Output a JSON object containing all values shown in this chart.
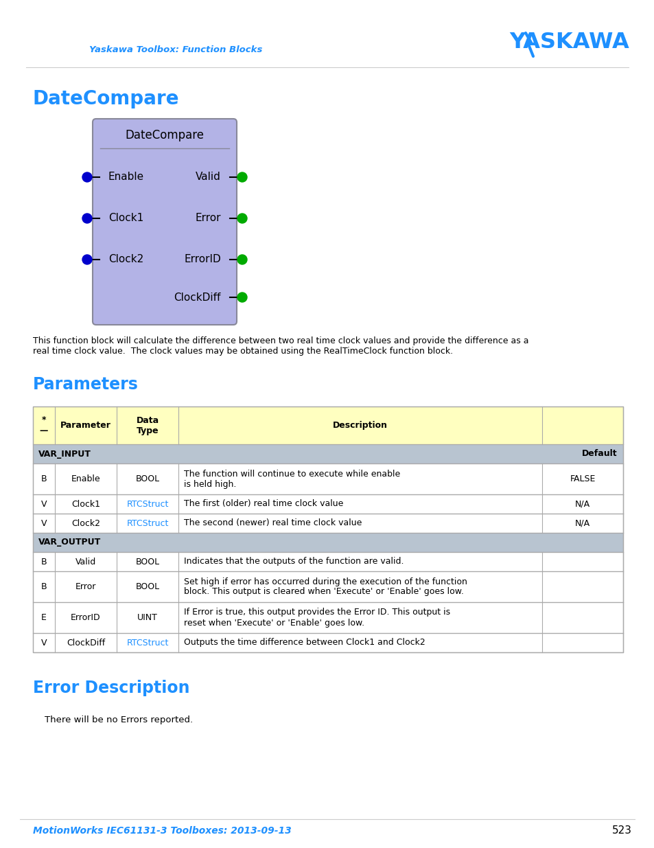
{
  "page_title": "DateCompare",
  "section_parameters": "Parameters",
  "section_error": "Error Description",
  "header_color": "#1e90ff",
  "block_title": "DateCompare",
  "block_bg": "#b3b3e6",
  "block_border": "#9999cc",
  "inputs": [
    "Enable",
    "Clock1",
    "Clock2"
  ],
  "outputs": [
    "Valid",
    "Error",
    "ErrorID",
    "ClockDiff"
  ],
  "input_dot_color": "#0000cc",
  "output_dot_color": "#00aa00",
  "description_text": "This function block will calculate the difference between two real time clock values and provide the difference as a\nreal time clock value.  The clock values may be obtained using the RealTimeClock function block.",
  "table_header_bg": "#ffffc0",
  "var_section_bg": "#b8c4d0",
  "table_border": "#aaaaaa",
  "footer_text": "MotionWorks IEC61131-3 Toolboxes: 2013-09-13",
  "footer_page": "523",
  "footer_color": "#1e90ff",
  "header_subtitle": "Yaskawa Toolbox: Function Blocks",
  "error_desc_text": "There will be no Errors reported.",
  "link_color": "#1e90ff"
}
